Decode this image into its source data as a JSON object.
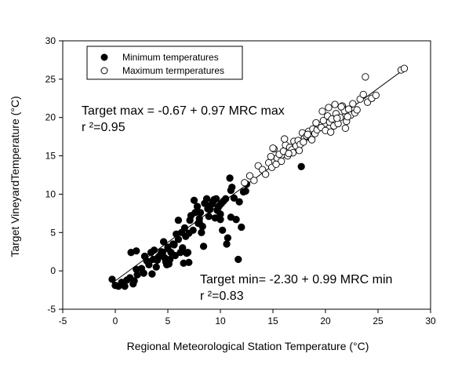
{
  "chart_data": {
    "type": "scatter",
    "xlabel": "Regional Meteorological Station Temperature (°C)",
    "ylabel": "Target VineyardTemperature (°C)",
    "xlim": [
      -5,
      30
    ],
    "ylim": [
      -5,
      30
    ],
    "xticks": [
      "-5",
      "0",
      "5",
      "10",
      "15",
      "20",
      "25",
      "30"
    ],
    "yticks": [
      "-5",
      "0",
      "5",
      "10",
      "15",
      "20",
      "25",
      "30"
    ],
    "grid": false,
    "legend": {
      "placement": "top-left"
    },
    "series": [
      {
        "name": "Minimum temperatures",
        "marker": "filled-circle",
        "x": [
          -0.3,
          0.3,
          0.6,
          0.9,
          1.1,
          1.4,
          1.7,
          1.8,
          2.0,
          2.1,
          2.5,
          2.7,
          3.0,
          3.2,
          3.4,
          3.6,
          3.7,
          3.9,
          4.1,
          4.3,
          4.5,
          4.6,
          4.8,
          4.9,
          5.0,
          5.2,
          5.3,
          5.5,
          5.7,
          5.8,
          6.0,
          6.2,
          6.3,
          6.5,
          6.7,
          6.9,
          7.1,
          7.2,
          7.4,
          7.6,
          7.8,
          8.0,
          8.1,
          8.3,
          8.5,
          8.7,
          8.9,
          9.0,
          9.2,
          9.3,
          9.5,
          9.6,
          9.8,
          10.0,
          10.1,
          10.3,
          10.5,
          10.7,
          10.9,
          11.1,
          11.3,
          11.5,
          11.7,
          12.0,
          12.2,
          12.4,
          2.0,
          2.8,
          3.5,
          4.0,
          4.7,
          5.1,
          5.6,
          6.4,
          6.8,
          7.0,
          7.5,
          7.9,
          8.4,
          8.8,
          9.4,
          9.9,
          10.2,
          10.6,
          11.0,
          11.8,
          12.5,
          17.7,
          5.0,
          6.0,
          7.0,
          8.0,
          9.0,
          10.0,
          11.0,
          1.5,
          0.0,
          4.4,
          6.6,
          8.2,
          9.7
        ],
        "y": [
          -1.1,
          -2.0,
          -1.5,
          -2.0,
          -1.2,
          -0.9,
          -1.7,
          -1.3,
          0.2,
          -0.5,
          0.3,
          -0.3,
          1.3,
          0.8,
          2.4,
          1.5,
          2.7,
          0.5,
          1.8,
          2.1,
          2.4,
          3.8,
          1.2,
          0.8,
          2.9,
          1.5,
          2.4,
          3.5,
          2.0,
          4.8,
          6.6,
          2.4,
          5.0,
          1.0,
          4.5,
          2.4,
          6.6,
          7.2,
          5.3,
          7.6,
          8.4,
          6.8,
          7.6,
          5.8,
          8.8,
          9.4,
          7.1,
          8.5,
          8.7,
          9.0,
          6.9,
          9.4,
          8.3,
          6.7,
          8.8,
          9.1,
          9.4,
          4.3,
          12.1,
          10.9,
          9.5,
          6.7,
          1.5,
          5.7,
          10.3,
          10.4,
          2.6,
          1.9,
          -0.4,
          1.4,
          1.7,
          0.9,
          3.4,
          3.0,
          2.3,
          1.1,
          9.2,
          6.2,
          3.2,
          8.1,
          9.3,
          8.5,
          5.3,
          3.5,
          7.0,
          9.0,
          11.3,
          13.6,
          3.1,
          4.1,
          4.9,
          6.3,
          8.0,
          7.4,
          10.5,
          2.4,
          -1.9,
          2.5,
          5.6,
          5.0,
          7.9
        ]
      },
      {
        "name": "Maximum termperatures",
        "marker": "open-circle",
        "x": [
          12.3,
          12.8,
          13.2,
          13.6,
          14.0,
          14.3,
          14.6,
          14.9,
          15.1,
          15.4,
          15.6,
          15.8,
          16.0,
          16.2,
          16.4,
          16.6,
          16.8,
          17.0,
          17.2,
          17.4,
          17.6,
          17.8,
          18.0,
          18.2,
          18.4,
          18.6,
          18.8,
          19.0,
          19.2,
          19.4,
          19.6,
          19.8,
          20.0,
          20.2,
          20.4,
          20.6,
          20.8,
          21.0,
          21.2,
          21.4,
          21.6,
          21.8,
          22.0,
          22.2,
          22.4,
          22.6,
          22.8,
          23.0,
          23.3,
          23.6,
          24.0,
          24.4,
          24.8,
          27.2,
          27.5,
          14.8,
          15.3,
          16.1,
          16.9,
          17.5,
          18.3,
          19.1,
          19.7,
          20.3,
          20.9,
          21.5,
          22.1,
          21.1,
          21.9,
          20.5,
          16.5,
          15.0,
          17.9,
          18.7,
          23.8
        ],
        "y": [
          11.5,
          12.4,
          11.8,
          13.7,
          13.2,
          12.6,
          14.1,
          13.5,
          15.9,
          14.7,
          15.2,
          14.3,
          15.6,
          16.4,
          15.0,
          16.1,
          15.8,
          16.9,
          16.3,
          17.0,
          16.5,
          18.0,
          17.3,
          17.6,
          18.2,
          17.4,
          18.5,
          17.9,
          18.4,
          19.0,
          18.7,
          19.6,
          18.3,
          20.2,
          19.4,
          19.8,
          18.9,
          20.5,
          19.2,
          20.0,
          21.5,
          20.9,
          19.5,
          21.1,
          20.3,
          21.8,
          20.6,
          21.0,
          22.4,
          23.0,
          22.0,
          22.5,
          22.9,
          26.2,
          26.4,
          14.9,
          13.9,
          17.2,
          15.4,
          15.7,
          17.8,
          19.3,
          20.8,
          21.3,
          21.7,
          21.4,
          20.1,
          19.9,
          18.6,
          18.1,
          15.3,
          16.0,
          16.8,
          17.1,
          25.3
        ]
      }
    ],
    "regression_lines": [
      {
        "x": [
          -0.3,
          27.5
        ],
        "y": [
          -1.6,
          26.3
        ]
      }
    ],
    "annotations": {
      "max_equation": "Target max = -0.67 + 0.97 MRC max",
      "max_r2": "r ²=0.95",
      "min_equation": "Target min= -2.30 + 0.99 MRC min",
      "min_r2": "r ²=0.83"
    }
  }
}
